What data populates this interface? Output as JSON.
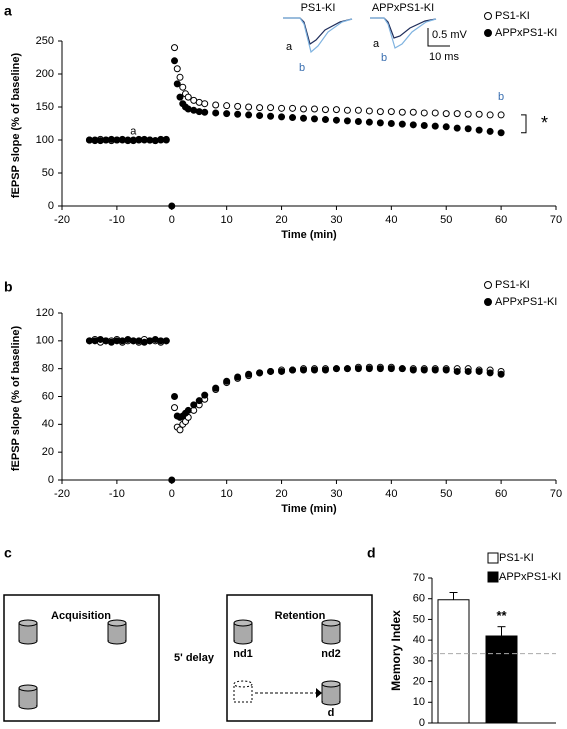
{
  "chart_data": [
    {
      "type": "scatter",
      "panel_label": "a",
      "y_label": "fEPSP slope (% of baseline)",
      "x_label": "Time (min)",
      "x": [
        -15,
        -14,
        -13,
        -12,
        -11,
        -10,
        -9,
        -8,
        -7,
        -6,
        -5,
        -4,
        -3,
        -2,
        -1,
        0,
        0.5,
        1,
        1.5,
        2,
        2.5,
        3,
        4,
        5,
        6,
        8,
        10,
        12,
        14,
        16,
        18,
        20,
        22,
        24,
        26,
        28,
        30,
        32,
        34,
        36,
        38,
        40,
        42,
        44,
        46,
        48,
        50,
        52,
        54,
        56,
        58,
        60
      ],
      "series": [
        {
          "name": "PS1-KI",
          "color": "#000000",
          "marker": "open",
          "values": [
            100,
            99,
            101,
            100,
            99,
            100,
            101,
            100,
            99,
            100,
            101,
            100,
            99,
            101,
            100,
            null,
            240,
            208,
            195,
            180,
            170,
            165,
            160,
            157,
            155,
            153,
            152,
            151,
            150,
            149,
            149,
            148,
            148,
            147,
            147,
            146,
            146,
            145,
            145,
            144,
            143,
            143,
            142,
            142,
            141,
            141,
            140,
            140,
            139,
            139,
            138,
            138
          ]
        },
        {
          "name": "APPxPS1-KI",
          "color": "#000000",
          "marker": "filled",
          "values": [
            100,
            100,
            99,
            100,
            101,
            100,
            100,
            99,
            100,
            101,
            100,
            100,
            99,
            100,
            101,
            0,
            220,
            185,
            165,
            155,
            150,
            147,
            145,
            143,
            142,
            141,
            140,
            139,
            138,
            137,
            136,
            135,
            134,
            133,
            132,
            131,
            130,
            129,
            128,
            127,
            126,
            125,
            124,
            123,
            122,
            121,
            120,
            118,
            117,
            115,
            113,
            111
          ]
        }
      ],
      "xlim": [
        -20,
        70
      ],
      "xticks": [
        -20,
        -10,
        0,
        10,
        20,
        30,
        40,
        50,
        60,
        70
      ],
      "ylim": [
        0,
        250
      ],
      "yticks": [
        0,
        50,
        100,
        150,
        200,
        250
      ],
      "annotations": [
        "a",
        "b",
        "*"
      ],
      "inset": {
        "titles": [
          "PS1-KI",
          "APPxPS1-KI"
        ],
        "trace_labels": [
          "a",
          "b",
          "a",
          "b"
        ],
        "scale_labels": [
          "0.5 mV",
          "10 ms"
        ]
      }
    },
    {
      "type": "scatter",
      "panel_label": "b",
      "y_label": "fEPSP slope (% of baseline)",
      "x_label": "Time (min)",
      "x": [
        -15,
        -14,
        -13,
        -12,
        -11,
        -10,
        -9,
        -8,
        -7,
        -6,
        -5,
        -4,
        -3,
        -2,
        -1,
        0,
        0.5,
        1,
        1.5,
        2,
        2.5,
        3,
        4,
        5,
        6,
        8,
        10,
        12,
        14,
        16,
        18,
        20,
        22,
        24,
        26,
        28,
        30,
        32,
        34,
        36,
        38,
        40,
        42,
        44,
        46,
        48,
        50,
        52,
        54,
        56,
        58,
        60
      ],
      "series": [
        {
          "name": "PS1-KI",
          "color": "#000000",
          "marker": "open",
          "values": [
            100,
            101,
            99,
            100,
            100,
            101,
            99,
            100,
            100,
            99,
            101,
            100,
            100,
            99,
            100,
            null,
            52,
            38,
            36,
            40,
            42,
            45,
            50,
            54,
            58,
            65,
            70,
            73,
            75,
            77,
            78,
            79,
            79,
            80,
            80,
            80,
            80,
            80,
            81,
            81,
            81,
            81,
            80,
            80,
            80,
            80,
            80,
            80,
            80,
            79,
            79,
            78
          ]
        },
        {
          "name": "APPxPS1-KI",
          "color": "#000000",
          "marker": "filled",
          "values": [
            100,
            100,
            101,
            100,
            99,
            100,
            100,
            101,
            100,
            100,
            99,
            100,
            101,
            100,
            100,
            0,
            60,
            46,
            45,
            46,
            48,
            50,
            54,
            57,
            61,
            66,
            71,
            74,
            76,
            77,
            78,
            78,
            79,
            79,
            79,
            79,
            80,
            80,
            80,
            80,
            80,
            80,
            80,
            79,
            79,
            79,
            79,
            78,
            78,
            78,
            77,
            76
          ]
        }
      ],
      "xlim": [
        -20,
        70
      ],
      "xticks": [
        -20,
        -10,
        0,
        10,
        20,
        30,
        40,
        50,
        60,
        70
      ],
      "ylim": [
        0,
        120
      ],
      "yticks": [
        0,
        20,
        40,
        60,
        80,
        100,
        120
      ]
    },
    {
      "type": "bar",
      "panel_label": "d",
      "y_label": "Memory Index",
      "series": [
        {
          "name": "PS1-KI",
          "color": "#ffffff",
          "values": [
            59.5
          ],
          "errors": [
            3.5
          ]
        },
        {
          "name": "APPxPS1-KI",
          "color": "#000000",
          "values": [
            42
          ],
          "errors": [
            4.5
          ]
        }
      ],
      "significance": "**",
      "reference_line": 33.5,
      "ylim": [
        0,
        70
      ],
      "yticks": [
        0,
        10,
        20,
        30,
        40,
        50,
        60,
        70
      ]
    }
  ],
  "diagram": {
    "panel_label": "c",
    "acquisition": "Acquisition",
    "retention": "Retention",
    "delay": "5' delay",
    "objects": [
      "nd1",
      "nd2",
      "d"
    ]
  }
}
